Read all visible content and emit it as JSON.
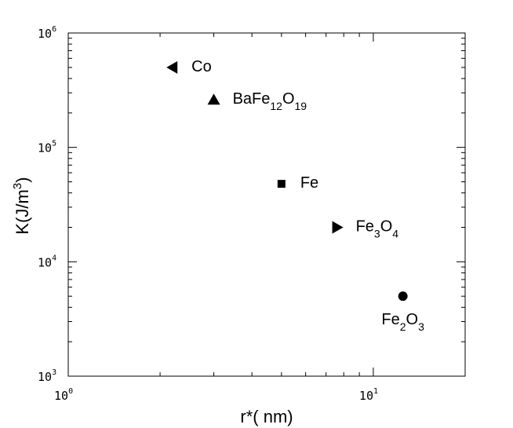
{
  "chart_data": {
    "type": "scatter",
    "xlabel": "r*( nm)",
    "ylabel": {
      "base": "K(J/m",
      "sup": "3",
      "end": ")"
    },
    "x_scale": "log",
    "y_scale": "log",
    "xlim": [
      1,
      20
    ],
    "ylim": [
      1000,
      1000000
    ],
    "grid": false,
    "x_ticks": [
      {
        "value": 1,
        "base": "10",
        "exp": "0"
      },
      {
        "value": 10,
        "base": "10",
        "exp": "1"
      }
    ],
    "y_ticks": [
      {
        "value": 1000,
        "base": "10",
        "exp": "3"
      },
      {
        "value": 10000,
        "base": "10",
        "exp": "4"
      },
      {
        "value": 100000,
        "base": "10",
        "exp": "5"
      },
      {
        "value": 1000000,
        "base": "10",
        "exp": "6"
      }
    ],
    "points": [
      {
        "x": 2.2,
        "y": 500000,
        "marker": "triangle-left",
        "label": [
          {
            "t": "Co",
            "s": false
          }
        ],
        "label_pos": "right"
      },
      {
        "x": 3.0,
        "y": 260000,
        "marker": "triangle-up",
        "label": [
          {
            "t": "BaFe",
            "s": false
          },
          {
            "t": "12",
            "s": true
          },
          {
            "t": "O",
            "s": false
          },
          {
            "t": "19",
            "s": true
          }
        ],
        "label_pos": "right"
      },
      {
        "x": 5.0,
        "y": 48000,
        "marker": "square",
        "label": [
          {
            "t": "Fe",
            "s": false
          }
        ],
        "label_pos": "right"
      },
      {
        "x": 7.6,
        "y": 20000,
        "marker": "triangle-right",
        "label": [
          {
            "t": "Fe",
            "s": false
          },
          {
            "t": "3",
            "s": true
          },
          {
            "t": "O",
            "s": false
          },
          {
            "t": "4",
            "s": true
          }
        ],
        "label_pos": "right"
      },
      {
        "x": 12.5,
        "y": 5000,
        "marker": "circle",
        "label": [
          {
            "t": "Fe",
            "s": false
          },
          {
            "t": "2",
            "s": true
          },
          {
            "t": "O",
            "s": false
          },
          {
            "t": "3",
            "s": true
          }
        ],
        "label_pos": "below"
      }
    ]
  }
}
